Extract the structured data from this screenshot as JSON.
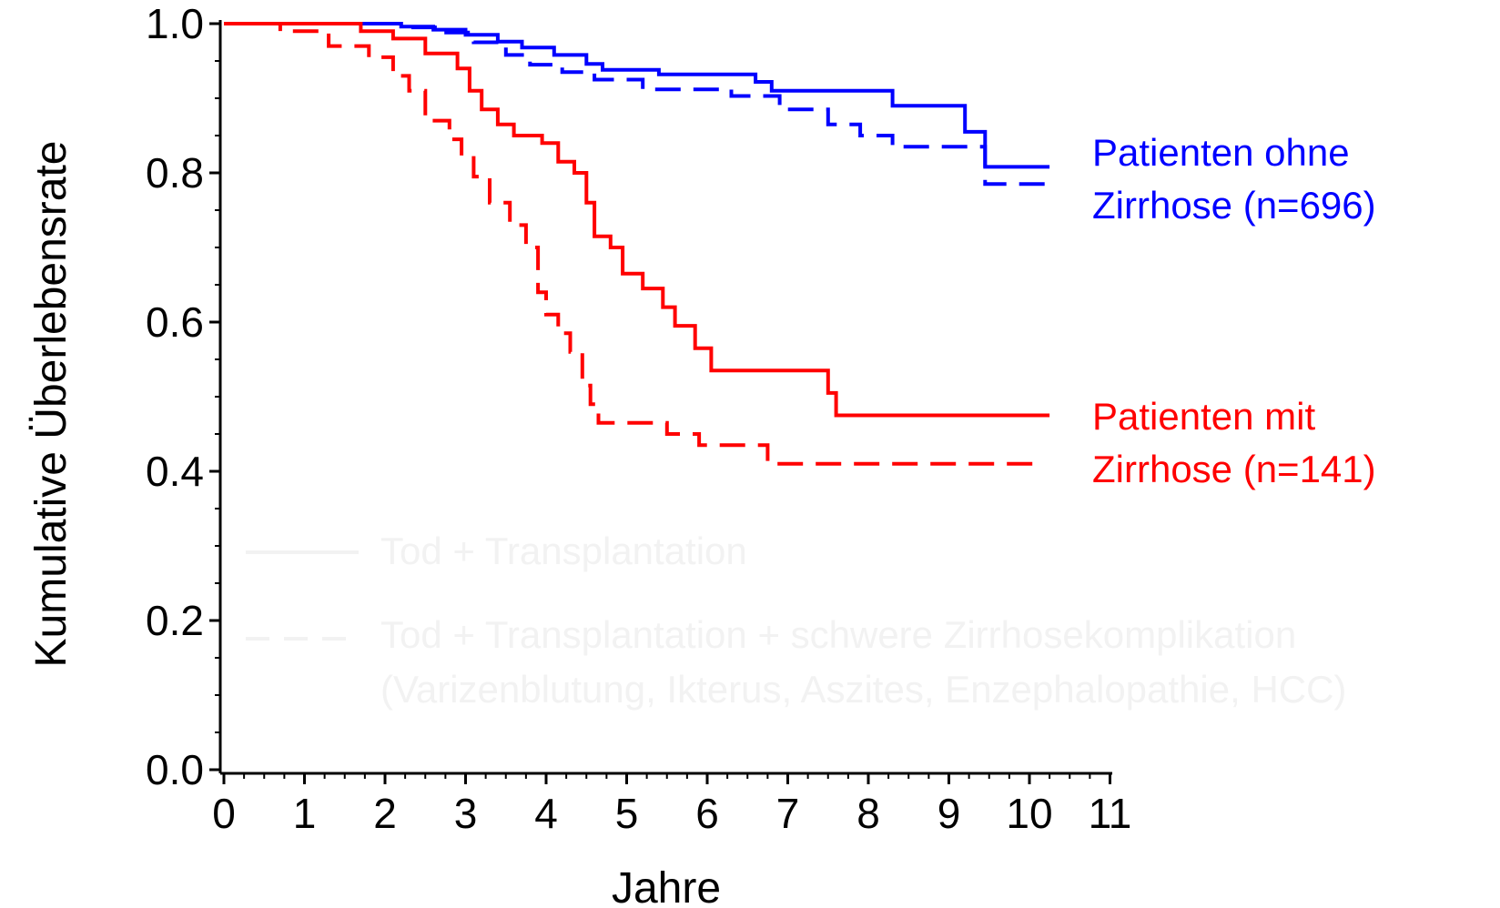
{
  "chart_data": {
    "type": "line",
    "title": "",
    "xlabel": "Jahre",
    "ylabel": "Kumulative Überlebensrate",
    "xlim": [
      0,
      11
    ],
    "ylim": [
      0,
      1
    ],
    "x_ticks": [
      "0",
      "1",
      "2",
      "3",
      "4",
      "5",
      "6",
      "7",
      "8",
      "9",
      "10",
      "11"
    ],
    "y_ticks": [
      "0.0",
      "0.2",
      "0.4",
      "0.6",
      "0.8",
      "1.0"
    ],
    "grid": false,
    "colors": {
      "ohne": "#0000ff",
      "mit": "#ff0000",
      "legend": "#f2f2f2"
    },
    "annotations": {
      "ohne": [
        "Patienten ohne",
        "Zirrhose (n=696)"
      ],
      "mit": [
        "Patienten mit",
        "Zirrhose (n=141)"
      ]
    },
    "legend": [
      {
        "style": "solid",
        "label": "Tod + Transplantation"
      },
      {
        "style": "dashed",
        "label": "Tod + Transplantation + schwere Zirrhosekomplikation",
        "label2": "(Varizenblutung, Ikterus, Aszites, Enzephalopathie, HCC)"
      }
    ],
    "series": [
      {
        "group": "ohne",
        "dash": false,
        "points": [
          [
            0,
            1.0
          ],
          [
            1.4,
            1.0
          ],
          [
            2.2,
            0.996
          ],
          [
            2.6,
            0.992
          ],
          [
            3.0,
            0.985
          ],
          [
            3.4,
            0.976
          ],
          [
            3.7,
            0.968
          ],
          [
            4.1,
            0.958
          ],
          [
            4.5,
            0.946
          ],
          [
            4.7,
            0.938
          ],
          [
            5.4,
            0.932
          ],
          [
            6.6,
            0.922
          ],
          [
            6.8,
            0.91
          ],
          [
            8.3,
            0.89
          ],
          [
            9.2,
            0.855
          ],
          [
            9.45,
            0.808
          ],
          [
            10.25,
            0.808
          ]
        ]
      },
      {
        "group": "ohne",
        "dash": true,
        "points": [
          [
            0,
            1.0
          ],
          [
            1.4,
            1.0
          ],
          [
            2.2,
            0.995
          ],
          [
            2.7,
            0.988
          ],
          [
            3.1,
            0.975
          ],
          [
            3.5,
            0.958
          ],
          [
            3.8,
            0.945
          ],
          [
            4.2,
            0.935
          ],
          [
            4.6,
            0.925
          ],
          [
            5.2,
            0.912
          ],
          [
            6.3,
            0.903
          ],
          [
            6.9,
            0.885
          ],
          [
            7.5,
            0.865
          ],
          [
            7.9,
            0.85
          ],
          [
            8.3,
            0.835
          ],
          [
            9.45,
            0.785
          ],
          [
            10.25,
            0.785
          ]
        ]
      },
      {
        "group": "mit",
        "dash": false,
        "points": [
          [
            0,
            1.0
          ],
          [
            1.4,
            1.0
          ],
          [
            1.7,
            0.99
          ],
          [
            2.1,
            0.98
          ],
          [
            2.5,
            0.96
          ],
          [
            2.9,
            0.94
          ],
          [
            3.05,
            0.91
          ],
          [
            3.2,
            0.885
          ],
          [
            3.4,
            0.865
          ],
          [
            3.6,
            0.85
          ],
          [
            3.95,
            0.84
          ],
          [
            4.15,
            0.815
          ],
          [
            4.35,
            0.8
          ],
          [
            4.5,
            0.76
          ],
          [
            4.6,
            0.715
          ],
          [
            4.8,
            0.7
          ],
          [
            4.95,
            0.665
          ],
          [
            5.2,
            0.645
          ],
          [
            5.45,
            0.62
          ],
          [
            5.6,
            0.595
          ],
          [
            5.85,
            0.565
          ],
          [
            6.05,
            0.535
          ],
          [
            7.5,
            0.505
          ],
          [
            7.6,
            0.475
          ],
          [
            10.25,
            0.475
          ]
        ]
      },
      {
        "group": "mit",
        "dash": true,
        "points": [
          [
            0,
            1.0
          ],
          [
            0.7,
            0.99
          ],
          [
            1.3,
            0.97
          ],
          [
            1.8,
            0.955
          ],
          [
            2.1,
            0.93
          ],
          [
            2.3,
            0.91
          ],
          [
            2.5,
            0.87
          ],
          [
            2.8,
            0.845
          ],
          [
            2.95,
            0.82
          ],
          [
            3.1,
            0.795
          ],
          [
            3.3,
            0.76
          ],
          [
            3.55,
            0.73
          ],
          [
            3.75,
            0.7
          ],
          [
            3.9,
            0.64
          ],
          [
            4.0,
            0.61
          ],
          [
            4.15,
            0.585
          ],
          [
            4.3,
            0.56
          ],
          [
            4.45,
            0.515
          ],
          [
            4.55,
            0.49
          ],
          [
            4.65,
            0.465
          ],
          [
            5.5,
            0.45
          ],
          [
            5.9,
            0.435
          ],
          [
            6.75,
            0.41
          ],
          [
            10.15,
            0.41
          ]
        ]
      }
    ]
  }
}
